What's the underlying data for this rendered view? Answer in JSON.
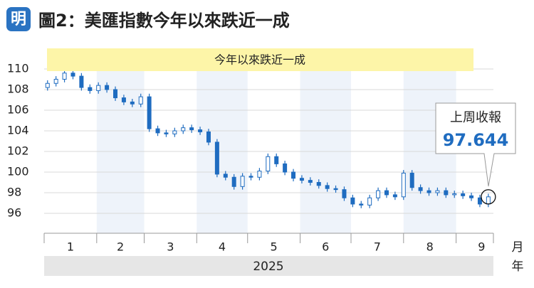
{
  "logo": "明",
  "chart_data": {
    "type": "candlestick",
    "title": "圖2：美匯指數今年以來跌近一成",
    "subtitle": "今年以來跌近一成",
    "annotation": {
      "label": "上周收報",
      "value": "97.644"
    },
    "x_unit": "月",
    "year_unit": "年",
    "year": "2025",
    "color": "#1f6cc0",
    "x": [
      2,
      7,
      12,
      17,
      22,
      27,
      32,
      37,
      42,
      47,
      52,
      57,
      62,
      67,
      72,
      77,
      82,
      87,
      92,
      97,
      102,
      107,
      112,
      117,
      122,
      127,
      132,
      137,
      142,
      147,
      152,
      157,
      162,
      167,
      172,
      177,
      182,
      187,
      192,
      197,
      202,
      207,
      212,
      217,
      222,
      227,
      232,
      237,
      242,
      247,
      252,
      257,
      262
    ],
    "open": [
      108.2,
      108.6,
      109.0,
      109.6,
      109.3,
      108.2,
      107.9,
      108.4,
      108.0,
      107.2,
      106.8,
      106.6,
      107.3,
      104.2,
      103.8,
      103.7,
      104.0,
      104.3,
      104.1,
      103.9,
      102.9,
      99.8,
      99.5,
      98.6,
      99.6,
      99.5,
      100.1,
      101.5,
      100.8,
      100.0,
      99.4,
      99.2,
      99.0,
      98.7,
      98.4,
      98.3,
      97.5,
      96.9,
      96.8,
      97.5,
      98.2,
      97.8,
      97.6,
      99.9,
      98.5,
      98.2,
      98.0,
      98.2,
      97.8,
      97.9,
      97.7,
      97.5,
      96.9
    ],
    "high": [
      108.9,
      109.3,
      109.9,
      109.9,
      109.6,
      108.5,
      108.7,
      108.7,
      108.3,
      107.5,
      107.1,
      107.6,
      107.6,
      104.5,
      104.1,
      104.3,
      104.6,
      104.6,
      104.4,
      104.2,
      103.2,
      100.1,
      99.8,
      99.9,
      99.9,
      100.4,
      101.8,
      101.8,
      101.1,
      100.3,
      99.7,
      99.5,
      99.3,
      99.0,
      98.7,
      98.6,
      97.8,
      97.2,
      97.8,
      98.5,
      98.5,
      98.1,
      100.2,
      100.2,
      98.8,
      98.5,
      98.5,
      98.5,
      98.2,
      98.2,
      98.0,
      97.8,
      97.9
    ],
    "low": [
      107.9,
      108.3,
      108.7,
      109.0,
      107.9,
      107.6,
      107.6,
      107.7,
      106.9,
      106.5,
      106.3,
      106.3,
      103.9,
      103.5,
      103.4,
      103.4,
      103.7,
      103.8,
      103.6,
      102.6,
      99.5,
      99.2,
      98.3,
      98.3,
      99.2,
      99.2,
      99.8,
      100.5,
      99.7,
      99.1,
      98.9,
      98.7,
      98.4,
      98.1,
      98.0,
      97.2,
      96.6,
      96.5,
      96.5,
      97.2,
      97.5,
      97.3,
      97.3,
      98.2,
      97.9,
      97.7,
      97.7,
      97.5,
      97.5,
      97.4,
      97.2,
      96.6,
      96.6
    ],
    "close": [
      108.6,
      109.0,
      109.6,
      109.3,
      108.2,
      107.9,
      108.4,
      108.0,
      107.2,
      106.8,
      106.6,
      107.3,
      104.2,
      103.8,
      103.7,
      104.0,
      104.3,
      104.1,
      103.9,
      102.9,
      99.8,
      99.5,
      98.6,
      99.6,
      99.5,
      100.1,
      101.5,
      100.8,
      100.0,
      99.4,
      99.2,
      99.0,
      98.7,
      98.4,
      98.3,
      97.5,
      96.9,
      96.8,
      97.5,
      98.2,
      97.8,
      97.6,
      99.9,
      98.5,
      98.2,
      98.0,
      98.2,
      97.8,
      97.9,
      97.7,
      97.5,
      96.9,
      97.6
    ],
    "xlim": [
      0,
      265
    ],
    "xticks": [
      {
        "value": 15.5,
        "label": "1"
      },
      {
        "value": 45,
        "label": "2"
      },
      {
        "value": 74.5,
        "label": "3"
      },
      {
        "value": 105,
        "label": "4"
      },
      {
        "value": 135.5,
        "label": "5"
      },
      {
        "value": 166,
        "label": "6"
      },
      {
        "value": 196.5,
        "label": "7"
      },
      {
        "value": 227.5,
        "label": "8"
      },
      {
        "value": 258,
        "label": "9"
      }
    ],
    "month_boundaries": [
      0,
      31,
      59,
      90,
      120,
      151,
      181,
      212,
      243
    ],
    "ylim": [
      94.07,
      111.72
    ],
    "yticks": [
      96,
      98,
      100,
      102,
      104,
      106,
      108,
      110
    ],
    "grid": true
  }
}
